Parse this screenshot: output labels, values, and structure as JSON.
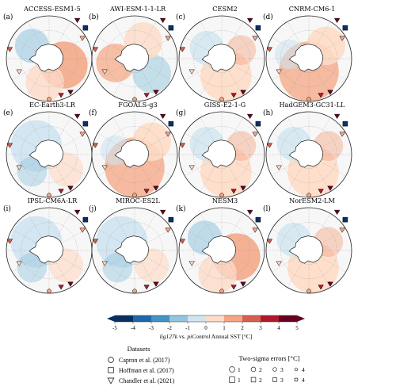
{
  "figure": {
    "panels": [
      {
        "letter": "(a)",
        "title": "ACCESS-ESM1-5",
        "pattern": "warm_east"
      },
      {
        "letter": "(b)",
        "title": "AWI-ESM-1-1-LR",
        "pattern": "mixed"
      },
      {
        "letter": "(c)",
        "title": "CESM2",
        "pattern": "mild_warm"
      },
      {
        "letter": "(d)",
        "title": "CNRM-CM6-1",
        "pattern": "warm"
      },
      {
        "letter": "(e)",
        "title": "EC-Earth3-LR",
        "pattern": "cool"
      },
      {
        "letter": "(f)",
        "title": "FGOALS-g3",
        "pattern": "warm"
      },
      {
        "letter": "(g)",
        "title": "GISS-E2-1-G",
        "pattern": "mild_warm"
      },
      {
        "letter": "(h)",
        "title": "HadGEM3-GC31-LL",
        "pattern": "mild_warm"
      },
      {
        "letter": "(i)",
        "title": "IPSL-CM6A-LR",
        "pattern": "cool"
      },
      {
        "letter": "(j)",
        "title": "MIROC-ES2L",
        "pattern": "cool"
      },
      {
        "letter": "(k)",
        "title": "NESM3",
        "pattern": "warm_east"
      },
      {
        "letter": "(l)",
        "title": "NorESM2-LM",
        "pattern": "mild_warm"
      }
    ],
    "colorbar": {
      "ticks": [
        "-5",
        "-4",
        "-3",
        "-2",
        "-1",
        "0",
        "1",
        "2",
        "3",
        "4",
        "5"
      ],
      "min": -5,
      "max": 5,
      "label_parts": [
        "lig127k",
        " vs. ",
        "piControl",
        " Annual SST [°C]"
      ],
      "colors_negative": [
        "#053061",
        "#2166ac",
        "#4393c3",
        "#92c5de",
        "#d1e5f0"
      ],
      "color_zero": "#f7f7f7",
      "colors_positive": [
        "#fddbc7",
        "#f4a582",
        "#d6604d",
        "#b2182b",
        "#67001f"
      ]
    },
    "datasets_legend": {
      "title": "Datasets",
      "items": [
        {
          "marker": "circle",
          "label": "Capron et al. (2017)"
        },
        {
          "marker": "square",
          "label": "Hoffman et al. (2017)"
        },
        {
          "marker": "triangle",
          "label": "Chandler et al. (2021)"
        }
      ]
    },
    "errors_legend": {
      "title": "Two-sigma errors [°C]",
      "rows": [
        {
          "marker": "circle",
          "values": [
            "1",
            "2",
            "3",
            "4"
          ]
        },
        {
          "marker": "square",
          "values": [
            "1",
            "2",
            "3",
            "4"
          ]
        }
      ]
    }
  }
}
